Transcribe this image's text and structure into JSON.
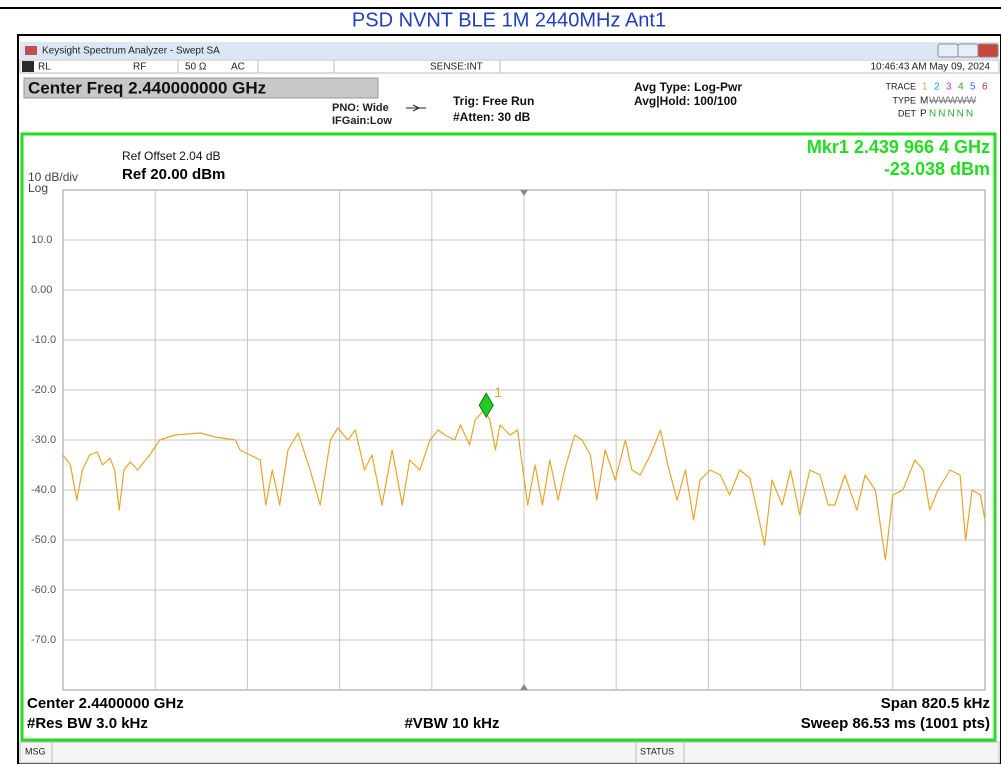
{
  "page_title": "PSD NVNT BLE 1M 2440MHz Ant1",
  "window": {
    "title": "Keysight Spectrum Analyzer - Swept SA"
  },
  "status_row": {
    "rl": "RL",
    "rf": "RF",
    "impedance": "50 Ω",
    "coupling": "AC",
    "sense": "SENSE:INT",
    "datetime": "10:46:43 AM May 09, 2024"
  },
  "settings": {
    "center_freq": "Center Freq 2.440000000 GHz",
    "pno": "PNO: Wide",
    "ifgain": "IFGain:Low",
    "trig": "Trig: Free Run",
    "atten": "#Atten: 30 dB",
    "avg_type": "Avg Type: Log-Pwr",
    "avg_hold": "Avg|Hold: 100/100",
    "trace_label": "TRACE",
    "trace_nums": [
      "1",
      "2",
      "3",
      "4",
      "5",
      "6"
    ],
    "type_label": "TYPE",
    "type_value": "M",
    "type_rest": "WWWWW",
    "det_label": "DET",
    "det_value": "P",
    "det_rest": "NNNNN"
  },
  "plot": {
    "ref_offset": "Ref Offset 2.04 dB",
    "scale": "10 dB/div",
    "scale_type": "Log",
    "ref_level": "Ref 20.00 dBm",
    "marker_freq": "Mkr1 2.439 966 4 GHz",
    "marker_amp": "-23.038 dBm"
  },
  "footer": {
    "center": "Center 2.4400000 GHz",
    "rbw": "#Res BW 3.0 kHz",
    "vbw": "#VBW 10 kHz",
    "span": "Span 820.5 kHz",
    "sweep": "Sweep  86.53 ms (1001 pts)"
  },
  "statusbar": {
    "msg": "MSG",
    "status": "STATUS"
  },
  "chart_data": {
    "type": "line",
    "x": [
      0,
      8,
      15,
      21,
      29,
      37,
      43,
      51,
      56,
      61,
      66,
      73,
      81,
      87,
      94,
      105,
      121,
      149,
      165,
      187,
      192,
      203,
      214,
      220,
      227,
      235,
      244,
      255,
      268,
      279,
      290,
      298,
      309,
      317,
      327,
      335,
      346,
      357,
      368,
      376,
      387,
      398,
      407,
      414,
      425,
      431,
      441,
      447,
      457,
      463,
      469,
      474,
      485,
      493,
      504,
      512,
      520,
      528,
      537,
      544,
      555,
      563,
      572,
      579,
      588,
      599,
      610,
      617,
      626,
      637,
      648,
      656,
      666,
      675,
      684,
      691,
      702,
      713,
      723,
      734,
      745,
      761,
      769,
      780,
      789,
      799,
      810,
      821,
      830,
      837,
      848,
      861,
      870,
      881,
      892,
      900,
      911,
      924,
      933,
      940,
      949,
      962,
      973,
      979,
      986,
      995,
      1000
    ],
    "series": [
      {
        "color": "#e8a52a",
        "values": [
          -33,
          -35,
          -42,
          -36,
          -33,
          -32.4,
          -35,
          -33.6,
          -36,
          -44,
          -36,
          -34.4,
          -36,
          -34.6,
          -33,
          -30,
          -29,
          -28.6,
          -29.4,
          -30,
          -32,
          -33,
          -34,
          -43,
          -36,
          -43,
          -32,
          -28.6,
          -36,
          -43,
          -30,
          -27.6,
          -30,
          -28,
          -36,
          -33,
          -43,
          -32,
          -43,
          -34,
          -36,
          -30,
          -28,
          -29,
          -30,
          -27,
          -31,
          -26,
          -24,
          -26,
          -32,
          -27,
          -29,
          -28,
          -43,
          -35,
          -43,
          -34,
          -42,
          -36,
          -29,
          -30,
          -33,
          -42,
          -32,
          -38,
          -30,
          -36,
          -37,
          -33,
          -28,
          -35,
          -42,
          -36,
          -46,
          -38,
          -36,
          -37,
          -41,
          -36,
          -37.6,
          -51,
          -38,
          -43,
          -36,
          -45,
          -36,
          -37,
          -43,
          -43,
          -37,
          -44,
          -37,
          -40,
          -54,
          -41,
          -40,
          -34,
          -36,
          -44,
          -40,
          -36,
          -37,
          -50,
          -40,
          -41,
          -46
        ]
      }
    ],
    "xlim": [
      0,
      1000
    ],
    "ylim": [
      -80,
      20
    ],
    "yticks": [
      {
        "value": 10,
        "label": "10.0"
      },
      {
        "value": 0,
        "label": "0.00"
      },
      {
        "value": -10,
        "label": "-10.0"
      },
      {
        "value": -20,
        "label": "-20.0"
      },
      {
        "value": -30,
        "label": "-30.0"
      },
      {
        "value": -40,
        "label": "-40.0"
      },
      {
        "value": -50,
        "label": "-50.0"
      },
      {
        "value": -60,
        "label": "-60.0"
      },
      {
        "value": -70,
        "label": "-70.0"
      }
    ],
    "grid": true,
    "marker": {
      "label": "1",
      "x": 459,
      "y": -23.038,
      "color": "#22cc22"
    }
  }
}
